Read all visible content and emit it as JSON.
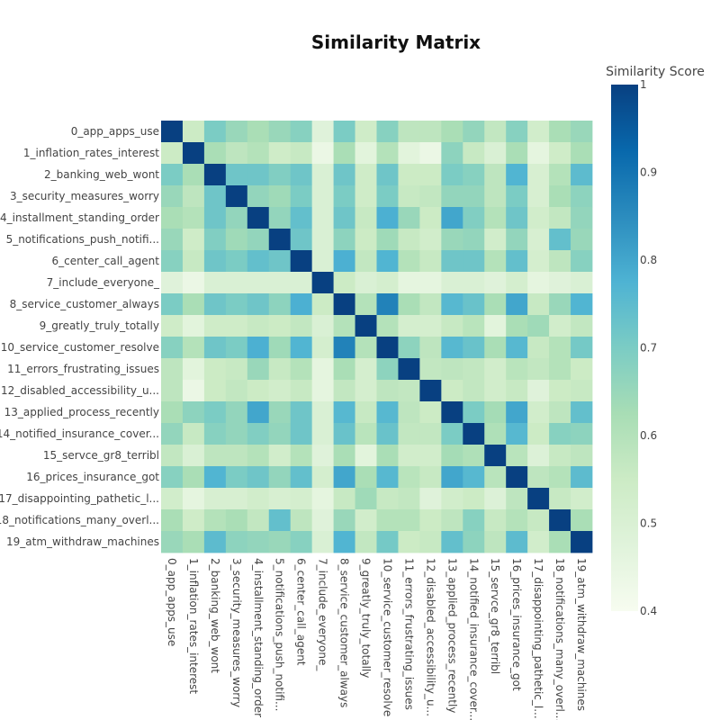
{
  "chart_data": {
    "type": "heatmap",
    "title": "Similarity Matrix",
    "labels": [
      "0_app_apps_use",
      "1_inflation_rates_interest",
      "2_banking_web_wont",
      "3_security_measures_worry",
      "4_installment_standing_order",
      "5_notifications_push_notifi...",
      "6_center_call_agent",
      "7_include_everyone_",
      "8_service_customer_always",
      "9_greatly_truly_totally",
      "10_service_customer_resolve",
      "11_errors_frustrating_issues",
      "12_disabled_accessibility_u...",
      "13_applied_process_recently",
      "14_notified_insurance_cover...",
      "15_servce_gr8_terribl",
      "16_prices_insurance_got",
      "17_disappointing_pathetic_l...",
      "18_notifications_many_overl...",
      "19_atm_withdraw_machines"
    ],
    "colorbar": {
      "title": "Similarity Score",
      "min": 0.4,
      "max": 1,
      "ticks": [
        "0.4",
        "0.5",
        "0.6",
        "0.7",
        "0.8",
        "0.9",
        "1"
      ]
    },
    "colorscale": "GnBu",
    "values": [
      [
        1.0,
        0.55,
        0.7,
        0.65,
        0.62,
        0.65,
        0.68,
        0.48,
        0.7,
        0.54,
        0.68,
        0.58,
        0.58,
        0.62,
        0.66,
        0.57,
        0.68,
        0.53,
        0.62,
        0.65
      ],
      [
        0.55,
        1.0,
        0.62,
        0.58,
        0.6,
        0.54,
        0.56,
        0.44,
        0.62,
        0.47,
        0.6,
        0.47,
        0.44,
        0.67,
        0.56,
        0.5,
        0.62,
        0.46,
        0.54,
        0.62
      ],
      [
        0.7,
        0.62,
        1.0,
        0.72,
        0.72,
        0.69,
        0.72,
        0.5,
        0.72,
        0.54,
        0.72,
        0.55,
        0.55,
        0.7,
        0.68,
        0.58,
        0.77,
        0.51,
        0.6,
        0.75
      ],
      [
        0.65,
        0.58,
        0.72,
        1.0,
        0.66,
        0.64,
        0.7,
        0.5,
        0.7,
        0.54,
        0.7,
        0.56,
        0.57,
        0.66,
        0.66,
        0.58,
        0.7,
        0.51,
        0.62,
        0.67
      ],
      [
        0.62,
        0.6,
        0.72,
        0.66,
        1.0,
        0.66,
        0.74,
        0.5,
        0.72,
        0.56,
        0.78,
        0.65,
        0.55,
        0.8,
        0.69,
        0.6,
        0.72,
        0.53,
        0.57,
        0.66
      ],
      [
        0.65,
        0.54,
        0.69,
        0.64,
        0.66,
        1.0,
        0.72,
        0.5,
        0.67,
        0.55,
        0.64,
        0.56,
        0.53,
        0.65,
        0.66,
        0.53,
        0.66,
        0.51,
        0.74,
        0.65
      ],
      [
        0.68,
        0.56,
        0.72,
        0.7,
        0.74,
        0.72,
        1.0,
        0.5,
        0.78,
        0.57,
        0.77,
        0.6,
        0.56,
        0.72,
        0.72,
        0.6,
        0.74,
        0.52,
        0.58,
        0.68
      ],
      [
        0.48,
        0.44,
        0.5,
        0.5,
        0.5,
        0.5,
        0.5,
        1.0,
        0.55,
        0.5,
        0.52,
        0.46,
        0.46,
        0.5,
        0.5,
        0.48,
        0.52,
        0.46,
        0.48,
        0.5
      ],
      [
        0.7,
        0.62,
        0.72,
        0.7,
        0.72,
        0.67,
        0.78,
        0.55,
        1.0,
        0.6,
        0.87,
        0.62,
        0.57,
        0.76,
        0.73,
        0.62,
        0.8,
        0.56,
        0.65,
        0.77
      ],
      [
        0.54,
        0.47,
        0.54,
        0.54,
        0.56,
        0.55,
        0.57,
        0.5,
        0.6,
        1.0,
        0.6,
        0.52,
        0.52,
        0.56,
        0.59,
        0.47,
        0.62,
        0.64,
        0.53,
        0.57
      ],
      [
        0.68,
        0.6,
        0.72,
        0.7,
        0.78,
        0.64,
        0.77,
        0.52,
        0.87,
        0.6,
        1.0,
        0.67,
        0.58,
        0.76,
        0.73,
        0.62,
        0.76,
        0.56,
        0.6,
        0.71
      ],
      [
        0.58,
        0.47,
        0.55,
        0.56,
        0.65,
        0.56,
        0.6,
        0.46,
        0.62,
        0.52,
        0.67,
        1.0,
        0.57,
        0.58,
        0.57,
        0.53,
        0.59,
        0.57,
        0.6,
        0.55
      ],
      [
        0.58,
        0.44,
        0.55,
        0.57,
        0.55,
        0.53,
        0.56,
        0.46,
        0.57,
        0.52,
        0.58,
        0.57,
        1.0,
        0.55,
        0.57,
        0.53,
        0.56,
        0.48,
        0.55,
        0.56
      ],
      [
        0.62,
        0.67,
        0.7,
        0.66,
        0.8,
        0.65,
        0.72,
        0.5,
        0.76,
        0.56,
        0.76,
        0.58,
        0.55,
        1.0,
        0.7,
        0.63,
        0.8,
        0.53,
        0.58,
        0.74
      ],
      [
        0.66,
        0.56,
        0.68,
        0.66,
        0.69,
        0.66,
        0.72,
        0.5,
        0.73,
        0.59,
        0.73,
        0.57,
        0.57,
        0.7,
        1.0,
        0.61,
        0.76,
        0.55,
        0.68,
        0.67
      ],
      [
        0.57,
        0.5,
        0.58,
        0.58,
        0.6,
        0.53,
        0.6,
        0.48,
        0.62,
        0.47,
        0.62,
        0.53,
        0.53,
        0.63,
        0.61,
        1.0,
        0.59,
        0.49,
        0.56,
        0.58
      ],
      [
        0.68,
        0.62,
        0.77,
        0.7,
        0.72,
        0.66,
        0.74,
        0.52,
        0.8,
        0.62,
        0.76,
        0.59,
        0.56,
        0.8,
        0.76,
        0.59,
        1.0,
        0.58,
        0.6,
        0.75
      ],
      [
        0.53,
        0.46,
        0.51,
        0.51,
        0.53,
        0.51,
        0.52,
        0.46,
        0.56,
        0.64,
        0.56,
        0.57,
        0.48,
        0.53,
        0.55,
        0.49,
        0.58,
        1.0,
        0.56,
        0.53
      ],
      [
        0.62,
        0.54,
        0.6,
        0.62,
        0.57,
        0.74,
        0.58,
        0.48,
        0.65,
        0.53,
        0.6,
        0.6,
        0.55,
        0.58,
        0.68,
        0.56,
        0.6,
        0.56,
        1.0,
        0.62
      ],
      [
        0.65,
        0.62,
        0.75,
        0.67,
        0.66,
        0.65,
        0.68,
        0.5,
        0.77,
        0.57,
        0.71,
        0.55,
        0.56,
        0.74,
        0.67,
        0.58,
        0.75,
        0.53,
        0.62,
        1.0
      ]
    ]
  }
}
